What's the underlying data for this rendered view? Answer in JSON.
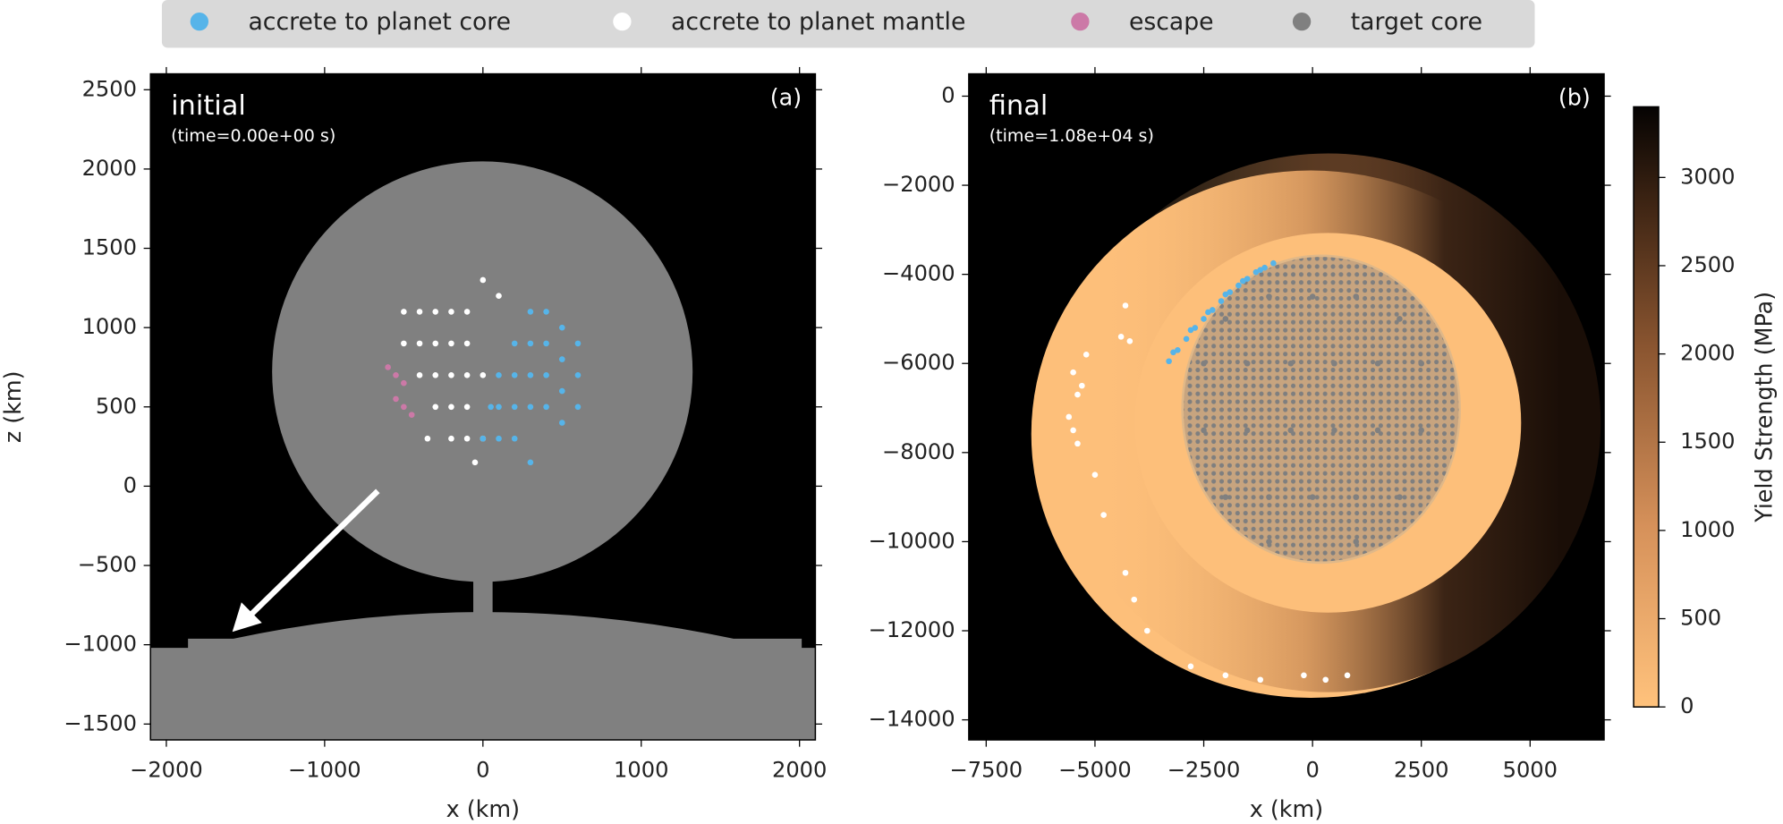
{
  "legend": [
    {
      "name": "accrete to planet core",
      "color": "#56b4e9"
    },
    {
      "name": "accrete to planet mantle",
      "color": "#ffffff"
    },
    {
      "name": "escape",
      "color": "#cc79a7"
    },
    {
      "name": "target core",
      "color": "#808080"
    }
  ],
  "chart_data": [
    {
      "type": "scatter",
      "title": "initial",
      "subtitle": "(time=0.00e+00 s)",
      "panel": "(a)",
      "x_label": "x (km)",
      "y_label": "z (km)",
      "xlim": [
        -2100,
        2100
      ],
      "ylim": [
        -1600,
        2600
      ],
      "xticks": [
        {
          "value": -2000,
          "label": "−2000"
        },
        {
          "value": -1000,
          "label": "−1000"
        },
        0,
        1000,
        2000
      ],
      "yticks": [
        {
          "value": -1500,
          "label": "−1500"
        },
        {
          "value": -1000,
          "label": "−1000"
        },
        {
          "value": -500,
          "label": "−500"
        },
        0,
        500,
        1000,
        1500,
        2000,
        2500
      ],
      "series": [
        {
          "color": "#ffffff",
          "x": [
            -500,
            -400,
            -300,
            -200,
            -100,
            0,
            -500,
            -400,
            -300,
            -200,
            -100,
            -400,
            -300,
            -200,
            -100,
            0,
            -300,
            -200,
            -100,
            -200,
            -100,
            0,
            -50,
            100,
            -350
          ],
          "values": [
            1100,
            1100,
            1100,
            1100,
            1100,
            1300,
            900,
            900,
            900,
            900,
            900,
            700,
            700,
            700,
            700,
            700,
            500,
            500,
            500,
            300,
            300,
            300,
            150,
            1200,
            300
          ]
        },
        {
          "color": "#56b4e9",
          "x": [
            300,
            400,
            500,
            600,
            200,
            300,
            400,
            500,
            600,
            100,
            200,
            300,
            400,
            500,
            600,
            50,
            100,
            200,
            300,
            400,
            500,
            0,
            100,
            200,
            300
          ],
          "values": [
            1100,
            1100,
            1000,
            900,
            900,
            900,
            900,
            800,
            700,
            700,
            700,
            700,
            700,
            600,
            500,
            500,
            500,
            500,
            500,
            500,
            400,
            300,
            300,
            300,
            150
          ]
        },
        {
          "color": "#cc79a7",
          "x": [
            -600,
            -550,
            -500,
            -550,
            -500,
            -450
          ],
          "values": [
            750,
            700,
            650,
            550,
            500,
            450
          ]
        }
      ]
    },
    {
      "type": "scatter",
      "title": "final",
      "subtitle": "(time=1.08e+04 s)",
      "panel": "(b)",
      "x_label": "x (km)",
      "xlim": [
        -7900,
        6700
      ],
      "ylim": [
        -14450,
        500
      ],
      "xticks": [
        {
          "value": -7500,
          "label": "−7500"
        },
        {
          "value": -5000,
          "label": "−5000"
        },
        {
          "value": -2500,
          "label": "−2500"
        },
        0,
        2500,
        5000
      ],
      "yticks": [
        {
          "value": -14000,
          "label": "−14000"
        },
        {
          "value": -12000,
          "label": "−12000"
        },
        {
          "value": -10000,
          "label": "−10000"
        },
        {
          "value": -8000,
          "label": "−8000"
        },
        {
          "value": -6000,
          "label": "−6000"
        },
        {
          "value": -4000,
          "label": "−4000"
        },
        {
          "value": -2000,
          "label": "−2000"
        },
        0
      ],
      "colorbar": {
        "label": "Yield Strength (MPa)",
        "lim": [
          0,
          3400
        ],
        "ticks": [
          0,
          500,
          1000,
          1500,
          2000,
          2500,
          3000
        ]
      },
      "series": [
        {
          "color": "#808080",
          "x": [
            -2000,
            -1000,
            0,
            1000,
            2000,
            -2500,
            -1500,
            -500,
            500,
            1500,
            2500,
            -2500,
            -1500,
            -500,
            500,
            1500,
            2500,
            -2000,
            -1000,
            0,
            1000,
            2000,
            -1000,
            1000
          ],
          "values": [
            -5000,
            -4500,
            -4500,
            -4500,
            -5000,
            -6000,
            -6000,
            -6000,
            -6000,
            -6000,
            -6000,
            -7500,
            -7500,
            -7500,
            -7500,
            -7500,
            -7500,
            -9000,
            -9000,
            -9000,
            -9000,
            -9000,
            -10000,
            -10000
          ]
        },
        {
          "color": "#56b4e9",
          "x": [
            -3300,
            -3100,
            -2900,
            -2700,
            -2500,
            -2300,
            -2100,
            -1900,
            -1700,
            -1500,
            -1300,
            -1100,
            -900,
            -3200,
            -2800,
            -2400,
            -2000,
            -1600,
            -1200
          ],
          "values": [
            -5950,
            -5700,
            -5450,
            -5200,
            -5000,
            -4800,
            -4600,
            -4400,
            -4250,
            -4100,
            -3950,
            -3850,
            -3750,
            -5750,
            -5250,
            -4850,
            -4450,
            -4150,
            -3900
          ]
        },
        {
          "color": "#ffffff",
          "x": [
            -4300,
            -4400,
            -5200,
            -5500,
            -5400,
            -5600,
            -5500,
            -5400,
            -5000,
            -4800,
            -4300,
            -4100,
            -3800,
            -2800,
            -2000,
            -1200,
            -200,
            300,
            800,
            -4200,
            -5300
          ],
          "values": [
            -4700,
            -5400,
            -5800,
            -6200,
            -6700,
            -7200,
            -7500,
            -7800,
            -8500,
            -9400,
            -10700,
            -11300,
            -12000,
            -12800,
            -13000,
            -13100,
            -13000,
            -13100,
            -13000,
            -5500,
            -6500
          ]
        }
      ]
    }
  ]
}
